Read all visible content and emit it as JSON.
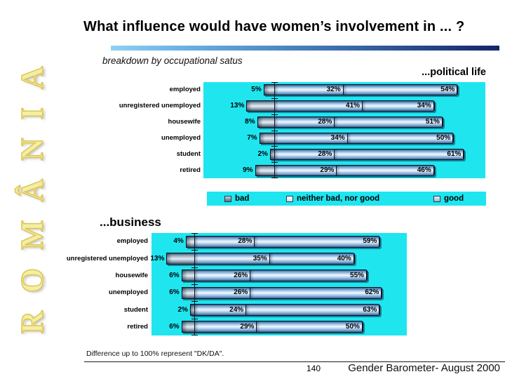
{
  "slide": {
    "title": "What influence would have women’s involvement in ... ?",
    "subtitle": "breakdown by occupational satus",
    "watermark": "ROMÂNIA",
    "footnote": "Difference up to 100% represent \"DK/DA\".",
    "page_number": "140",
    "footer_right": "Gender Barometer- August 2000"
  },
  "legend": {
    "items": [
      {
        "label": "bad"
      },
      {
        "label": "neither bad, nor good"
      },
      {
        "label": "good"
      }
    ]
  },
  "colors": {
    "plot_background": "#1FE5EF",
    "header_rule_start": "#8ED1F3",
    "header_rule_end": "#14246B",
    "watermark_gold": "#F0E795",
    "bar_light_blue": "#BCD6EE",
    "bar_bad_gray": "#8AA0B4"
  },
  "chart_data": [
    {
      "type": "bar",
      "orientation": "horizontal_stacked",
      "title": "...political life",
      "unit": "%",
      "categories": [
        "employed",
        "unregistered unemployed",
        "housewife",
        "unemployed",
        "student",
        "retired"
      ],
      "series": [
        {
          "name": "bad",
          "values": [
            5,
            13,
            8,
            7,
            2,
            9
          ]
        },
        {
          "name": "neither bad, nor good",
          "values": [
            32,
            41,
            28,
            34,
            28,
            29
          ]
        },
        {
          "name": "good",
          "values": [
            54,
            34,
            51,
            50,
            61,
            46
          ]
        }
      ],
      "layout": {
        "bad_plotted_left_of_baseline": true,
        "value_labels": true,
        "grid": false,
        "plot_bg": "#1FE5EF",
        "legend_position": "bottom"
      }
    },
    {
      "type": "bar",
      "orientation": "horizontal_stacked",
      "title": "...business",
      "unit": "%",
      "categories": [
        "employed",
        "unregistered unemployed",
        "housewife",
        "unemployed",
        "student",
        "retired"
      ],
      "series": [
        {
          "name": "bad",
          "values": [
            4,
            13,
            6,
            6,
            2,
            6
          ]
        },
        {
          "name": "neither bad, nor good",
          "values": [
            28,
            35,
            26,
            26,
            24,
            29
          ]
        },
        {
          "name": "good",
          "values": [
            59,
            40,
            55,
            62,
            63,
            50
          ]
        }
      ],
      "layout": {
        "bad_plotted_left_of_baseline": true,
        "value_labels": true,
        "grid": false,
        "plot_bg": "#1FE5EF",
        "legend_position": "none"
      }
    }
  ]
}
